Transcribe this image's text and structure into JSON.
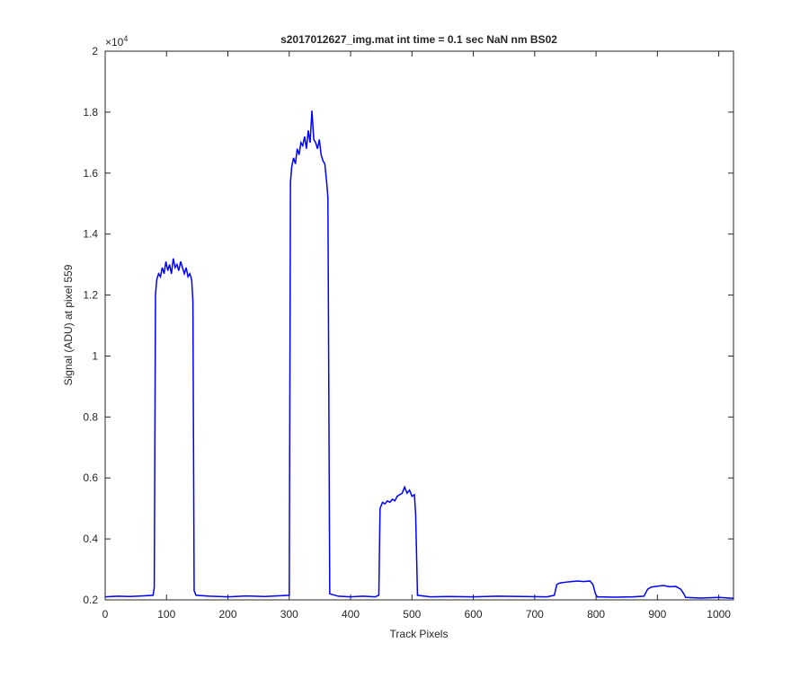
{
  "chart_data": {
    "type": "line",
    "title": "s2017012627_img.mat int time = 0.1 sec  NaN nm BS02",
    "xlabel": "Track Pixels",
    "ylabel": "Signal (ADU) at pixel 559",
    "y_multiplier": {
      "base": "×10",
      "power": "4"
    },
    "xlim": [
      0,
      1024
    ],
    "ylim": [
      2000,
      20000
    ],
    "xticks": [
      0,
      100,
      200,
      300,
      400,
      500,
      600,
      700,
      800,
      900,
      1000
    ],
    "yticks": [
      {
        "value": 2000,
        "label": "0.2"
      },
      {
        "value": 4000,
        "label": "0.4"
      },
      {
        "value": 6000,
        "label": "0.6"
      },
      {
        "value": 8000,
        "label": "0.8"
      },
      {
        "value": 10000,
        "label": "1"
      },
      {
        "value": 12000,
        "label": "1.2"
      },
      {
        "value": 14000,
        "label": "1.4"
      },
      {
        "value": 16000,
        "label": "1.6"
      },
      {
        "value": 18000,
        "label": "1.8"
      },
      {
        "value": 20000,
        "label": "2"
      }
    ],
    "grid": false,
    "x": [
      0,
      20,
      40,
      60,
      78,
      80,
      82,
      84,
      87,
      90,
      93,
      96,
      99,
      102,
      105,
      108,
      111,
      114,
      117,
      120,
      123,
      126,
      129,
      132,
      135,
      138,
      141,
      143,
      145,
      148,
      170,
      200,
      230,
      260,
      290,
      300,
      302,
      304,
      307,
      310,
      313,
      316,
      319,
      322,
      325,
      328,
      331,
      334,
      337,
      340,
      343,
      346,
      349,
      352,
      355,
      358,
      361,
      363,
      366,
      380,
      400,
      420,
      440,
      446,
      448,
      452,
      456,
      460,
      464,
      468,
      472,
      476,
      480,
      484,
      488,
      492,
      496,
      500,
      504,
      506,
      509,
      530,
      560,
      600,
      640,
      680,
      720,
      732,
      736,
      740,
      750,
      760,
      770,
      780,
      790,
      795,
      799,
      802,
      830,
      860,
      878,
      884,
      890,
      900,
      910,
      920,
      930,
      938,
      943,
      946,
      970,
      1000,
      1024
    ],
    "series": [
      {
        "color": "#0000ff",
        "values": [
          2100,
          2120,
          2110,
          2130,
          2150,
          2400,
          12000,
          12500,
          12700,
          12600,
          12900,
          12700,
          13100,
          12800,
          13000,
          12700,
          13200,
          12900,
          13000,
          12800,
          13100,
          12900,
          12700,
          12900,
          12600,
          12700,
          12500,
          11800,
          2300,
          2150,
          2120,
          2100,
          2130,
          2110,
          2140,
          2150,
          15700,
          16200,
          16500,
          16300,
          16800,
          16600,
          17000,
          16900,
          17200,
          16800,
          17400,
          17000,
          18050,
          17100,
          17000,
          16800,
          17100,
          16600,
          16400,
          16300,
          15700,
          15200,
          2200,
          2120,
          2100,
          2120,
          2100,
          2150,
          5000,
          5200,
          5150,
          5250,
          5200,
          5300,
          5250,
          5400,
          5450,
          5500,
          5700,
          5500,
          5600,
          5400,
          5450,
          4800,
          2150,
          2100,
          2110,
          2100,
          2120,
          2110,
          2100,
          2150,
          2500,
          2550,
          2580,
          2600,
          2620,
          2600,
          2620,
          2500,
          2200,
          2100,
          2090,
          2100,
          2120,
          2350,
          2420,
          2450,
          2470,
          2430,
          2440,
          2350,
          2200,
          2080,
          2060,
          2080,
          2050
        ]
      }
    ]
  }
}
